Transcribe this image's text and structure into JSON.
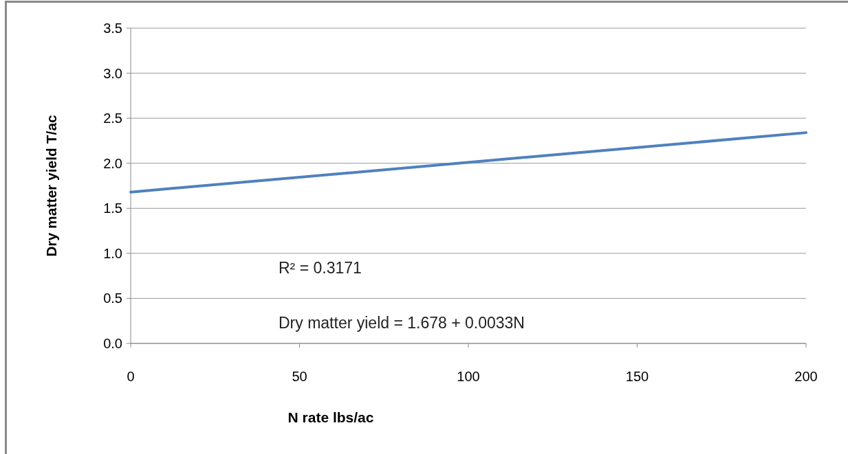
{
  "chart_data": {
    "type": "line",
    "xlabel": "N rate lbs/ac",
    "ylabel": "Dry matter yield T/ac",
    "x": [
      0,
      200
    ],
    "series": [
      {
        "color": "#4f81bd",
        "values": [
          1.68,
          2.34
        ]
      }
    ],
    "xlim": [
      0,
      200
    ],
    "xticks": [
      0,
      50,
      100,
      150,
      200
    ],
    "ylim": [
      0,
      3.5
    ],
    "yticks": [
      {
        "value": 0,
        "label": "0.0"
      },
      {
        "value": 0.5,
        "label": "0.5"
      },
      {
        "value": 1,
        "label": "1.0"
      },
      {
        "value": 1.5,
        "label": "1.5"
      },
      {
        "value": 2,
        "label": "2.0"
      },
      {
        "value": 2.5,
        "label": "2.5"
      },
      {
        "value": 3,
        "label": "3.0"
      },
      {
        "value": 3.5,
        "label": "3.5"
      }
    ],
    "grid": "y",
    "marker": "none",
    "line_style": "solid",
    "annotations": [
      "R² = 0.3171",
      "Dry matter yield = 1.678 + 0.0033N"
    ]
  }
}
